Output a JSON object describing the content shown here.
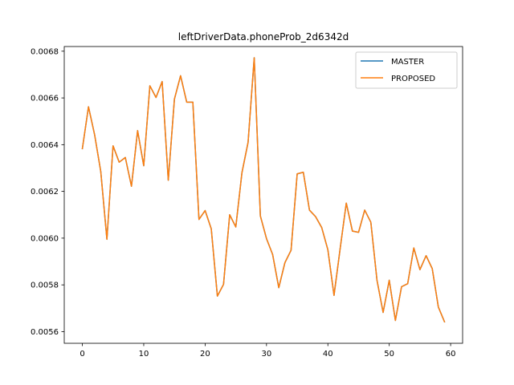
{
  "chart_data": {
    "type": "line",
    "title": "leftDriverData.phoneProb_2d6342d",
    "xlabel": "",
    "ylabel": "",
    "xlim": [
      -2.95,
      61.95
    ],
    "ylim": [
      0.00555,
      0.00682
    ],
    "xticks": [
      0,
      10,
      20,
      30,
      40,
      50,
      60
    ],
    "xtick_labels": [
      "0",
      "10",
      "20",
      "30",
      "40",
      "50",
      "60"
    ],
    "yticks": [
      0.0056,
      0.0058,
      0.006,
      0.0062,
      0.0064,
      0.0066,
      0.0068
    ],
    "ytick_labels": [
      "0.0056",
      "0.0058",
      "0.0060",
      "0.0062",
      "0.0064",
      "0.0066",
      "0.0068"
    ],
    "grid": false,
    "legend_position": "top-right",
    "x": [
      0,
      1,
      2,
      3,
      4,
      5,
      6,
      7,
      8,
      9,
      10,
      11,
      12,
      13,
      14,
      15,
      16,
      17,
      18,
      19,
      20,
      21,
      22,
      23,
      24,
      25,
      26,
      27,
      28,
      29,
      30,
      31,
      32,
      33,
      34,
      35,
      36,
      37,
      38,
      39,
      40,
      41,
      42,
      43,
      44,
      45,
      46,
      47,
      48,
      49,
      50,
      51,
      52,
      53,
      54,
      55,
      56,
      57,
      58,
      59
    ],
    "series": [
      {
        "name": "MASTER",
        "color": "#1f77b4",
        "values": [
          0.006383,
          0.006562,
          0.006442,
          0.006285,
          0.005995,
          0.006395,
          0.006325,
          0.006345,
          0.006222,
          0.00646,
          0.00631,
          0.006652,
          0.006602,
          0.00667,
          0.006248,
          0.006595,
          0.006695,
          0.006582,
          0.006582,
          0.00608,
          0.006118,
          0.00604,
          0.005752,
          0.005802,
          0.0061,
          0.006048,
          0.00628,
          0.00641,
          0.006772,
          0.006095,
          0.005998,
          0.00593,
          0.005788,
          0.005895,
          0.005948,
          0.006275,
          0.006282,
          0.00612,
          0.006092,
          0.006045,
          0.00595,
          0.005755,
          0.005955,
          0.00615,
          0.00603,
          0.006025,
          0.00612,
          0.006068,
          0.00582,
          0.005682,
          0.00582,
          0.005648,
          0.005792,
          0.005805,
          0.005958,
          0.005865,
          0.005925,
          0.00587,
          0.005705,
          0.005642
        ]
      },
      {
        "name": "PROPOSED",
        "color": "#ff7f0e",
        "values": [
          0.006383,
          0.006562,
          0.006442,
          0.006285,
          0.005995,
          0.006395,
          0.006325,
          0.006345,
          0.006222,
          0.00646,
          0.00631,
          0.006652,
          0.006602,
          0.00667,
          0.006248,
          0.006595,
          0.006695,
          0.006582,
          0.006582,
          0.00608,
          0.006118,
          0.00604,
          0.005752,
          0.005802,
          0.0061,
          0.006048,
          0.00628,
          0.00641,
          0.006772,
          0.006095,
          0.005998,
          0.00593,
          0.005788,
          0.005895,
          0.005948,
          0.006275,
          0.006282,
          0.00612,
          0.006092,
          0.006045,
          0.00595,
          0.005755,
          0.005955,
          0.00615,
          0.00603,
          0.006025,
          0.00612,
          0.006068,
          0.00582,
          0.005682,
          0.00582,
          0.005648,
          0.005792,
          0.005805,
          0.005958,
          0.005865,
          0.005925,
          0.00587,
          0.005705,
          0.005642
        ]
      }
    ]
  }
}
